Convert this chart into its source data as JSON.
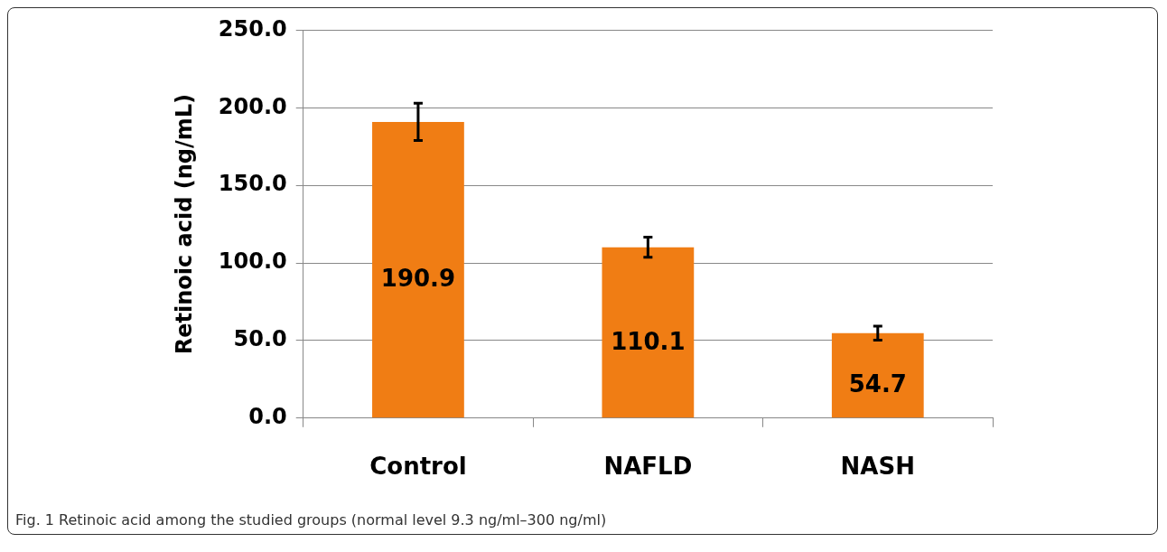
{
  "chart_data": {
    "type": "bar",
    "ylabel": "Retinoic acid (ng/mL)",
    "categories": [
      "Control",
      "NAFLD",
      "NASH"
    ],
    "values": [
      190.9,
      110.1,
      54.7
    ],
    "color": "#f07d14",
    "errors": [
      12,
      6.5,
      4.5
    ],
    "ylim": [
      0,
      250
    ],
    "yticks": [
      {
        "value": 0,
        "label": "0.0"
      },
      {
        "value": 50,
        "label": "50.0"
      },
      {
        "value": 100,
        "label": "100.0"
      },
      {
        "value": 150,
        "label": "150.0"
      },
      {
        "value": 200,
        "label": "200.0"
      },
      {
        "value": 250,
        "label": "250.0"
      }
    ],
    "grid": "y",
    "data_labels": true,
    "legend": false,
    "annotations": [
      "Fig. 1 Retinoic acid among the studied groups (normal level 9.3 ng/ml–300 ng/ml)"
    ]
  }
}
